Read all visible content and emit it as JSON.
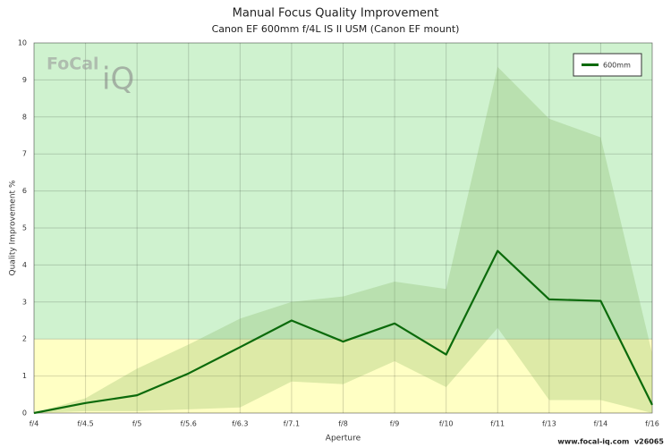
{
  "chart_data": {
    "type": "line",
    "title": "Manual Focus Quality Improvement",
    "subtitle": "Canon EF 600mm f/4L IS II USM (Canon EF mount)",
    "x_label": "Aperture",
    "y_label": "Quality Improvement %",
    "categories": [
      "f/4",
      "f/4.5",
      "f/5",
      "f/5.6",
      "f/6.3",
      "f/7.1",
      "f/8",
      "f/9",
      "f/10",
      "f/11",
      "f/13",
      "f/14",
      "f/16"
    ],
    "series": [
      {
        "name": "600mm",
        "color": "#0b6a0b",
        "values": [
          0,
          0.27,
          0.48,
          1.07,
          1.78,
          2.5,
          1.93,
          2.42,
          1.58,
          4.38,
          3.07,
          3.03,
          0.22
        ]
      }
    ],
    "band": {
      "color": "rgba(120,170,80,0.25)",
      "upper": [
        0,
        0.4,
        1.2,
        1.85,
        2.55,
        3.0,
        3.15,
        3.55,
        3.35,
        9.35,
        7.95,
        7.45,
        1.6
      ],
      "lower": [
        0,
        0.05,
        0.05,
        0.1,
        0.15,
        0.85,
        0.78,
        1.4,
        0.7,
        2.3,
        0.35,
        0.35,
        0
      ]
    },
    "zones": [
      {
        "from": 0,
        "to": 2,
        "color": "#ffffc4"
      },
      {
        "from": 2,
        "to": 10,
        "color": "#cff2cf"
      }
    ],
    "ylim": [
      0,
      10
    ],
    "yticks": [
      0,
      1,
      2,
      3,
      4,
      5,
      6,
      7,
      8,
      9,
      10
    ],
    "grid": true,
    "legend_position": "top-right",
    "logo_text": "FoCal",
    "logo_mark": "iQ",
    "watermark": "www.focal-iq.com  v26065"
  }
}
